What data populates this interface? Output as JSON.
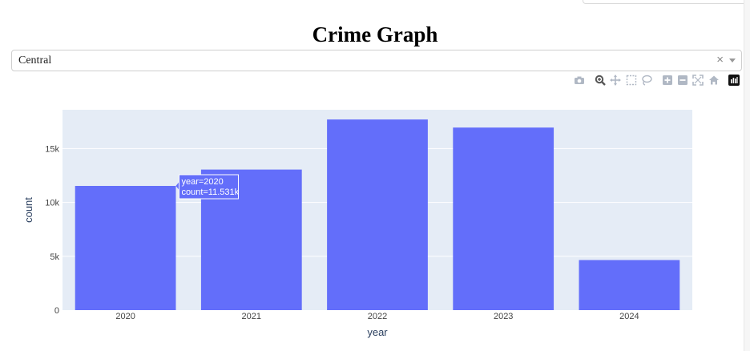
{
  "page": {
    "title": "Crime Graph"
  },
  "dropdown": {
    "selected": "Central",
    "clear_symbol": "×"
  },
  "modebar": {
    "icons": [
      "camera-icon",
      "zoom-icon",
      "pan-icon",
      "box-select-icon",
      "lasso-icon",
      "zoom-in-icon",
      "zoom-out-icon",
      "autoscale-icon",
      "reset-axes-icon",
      "plotly-logo-icon"
    ]
  },
  "colors": {
    "bar": "#636efa",
    "plot_bg": "#e5ecf6",
    "axis_text": "#2a3f5f",
    "tick_text": "#444444"
  },
  "chart_data": {
    "type": "bar",
    "categories": [
      "2020",
      "2021",
      "2022",
      "2023",
      "2024"
    ],
    "values": [
      11531,
      13050,
      17700,
      16950,
      4650
    ],
    "xlabel": "year",
    "ylabel": "count",
    "ylim": [
      0,
      18600
    ],
    "yticks": [
      0,
      5000,
      10000,
      15000
    ],
    "ytick_labels": [
      "0",
      "5k",
      "10k",
      "15k"
    ],
    "grid": true,
    "hover": {
      "category": "2020",
      "lines": [
        "year=2020",
        "count=11.531k"
      ]
    }
  }
}
